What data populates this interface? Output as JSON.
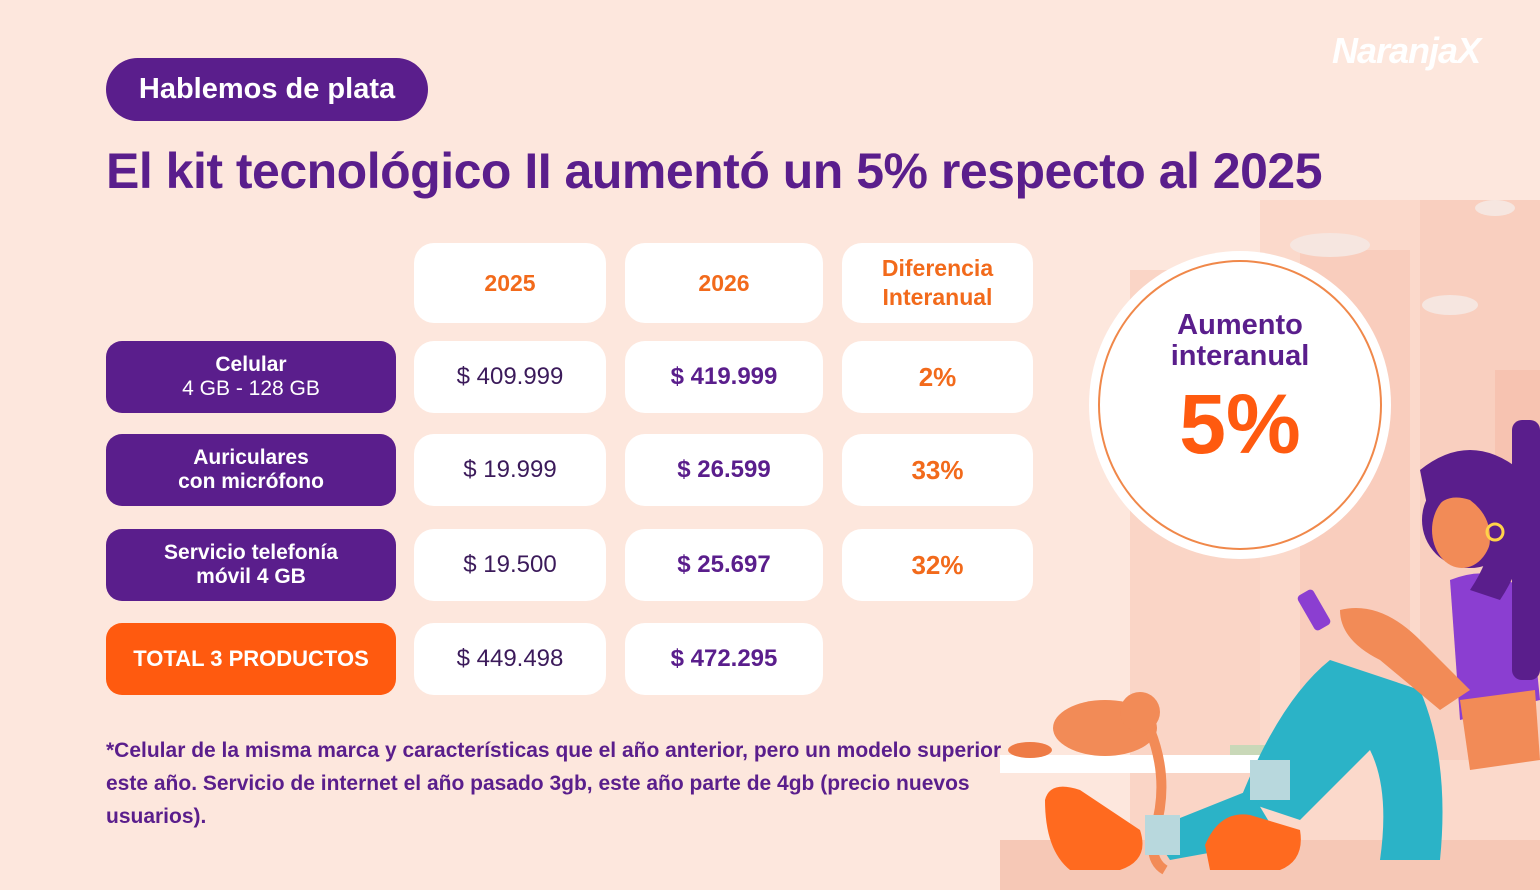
{
  "brand": {
    "logo_text": "NaranjaX"
  },
  "tag": "Hablemos de plata",
  "headline": "El kit tecnológico II aumentó un 5% respecto al 2025",
  "table": {
    "headers": [
      "2025",
      "2026",
      "Diferencia Interanual"
    ],
    "header_diff_line1": "Diferencia",
    "header_diff_line2": "Interanual",
    "rows": [
      {
        "label_line1": "Celular",
        "label_line2": "4 GB - 128 GB",
        "v2025": "$ 409.999",
        "v2026": "$ 419.999",
        "diff": "2%"
      },
      {
        "label_line1": "Auriculares",
        "label_line2": "con micrófono",
        "v2025": "$ 19.999",
        "v2026": "$ 26.599",
        "diff": "33%"
      },
      {
        "label_line1": "Servicio telefonía",
        "label_line2": "móvil 4 GB",
        "v2025": "$ 19.500",
        "v2026": "$ 25.697",
        "diff": "32%"
      }
    ],
    "total": {
      "label": "TOTAL 3 PRODUCTOS",
      "v2025": "$ 449.498",
      "v2026": "$ 472.295"
    }
  },
  "note": "*Celular de la misma marca y características que el año anterior, pero un modelo superior este año. Servicio de internet el año pasado 3gb, este año parte de 4gb (precio nuevos usuarios).",
  "badge": {
    "title": "Aumento interanual",
    "value": "5%"
  },
  "colors": {
    "background": "#fde7dd",
    "purple": "#5a1e8c",
    "orange": "#ff5a0f",
    "orange_text": "#f26a1b",
    "white": "#ffffff"
  }
}
